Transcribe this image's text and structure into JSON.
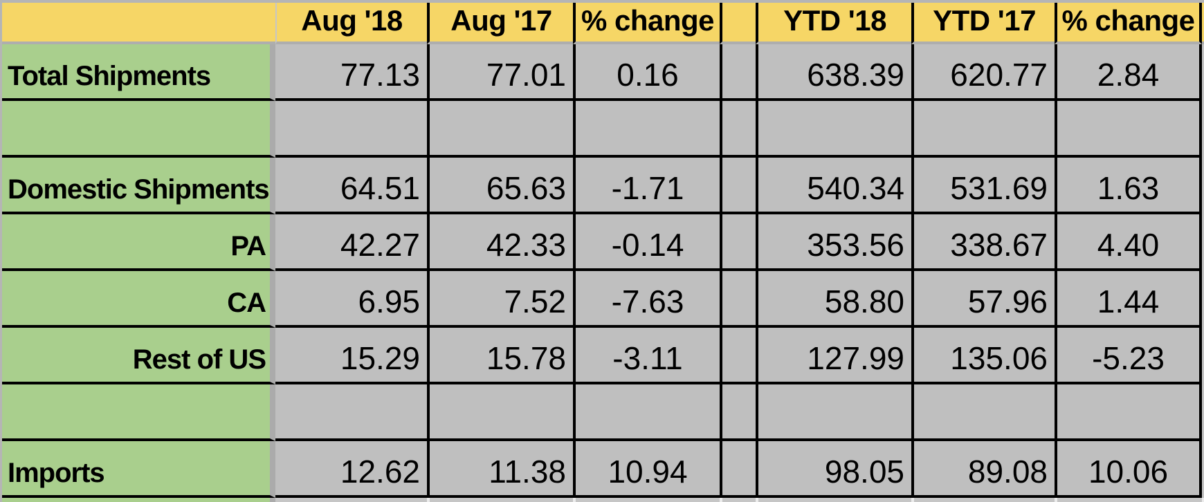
{
  "table": {
    "headers": [
      "",
      "Aug '18",
      "Aug '17",
      "% change",
      "",
      "YTD '18",
      "YTD '17",
      "% change"
    ],
    "rows": [
      {
        "label": "Total Shipments",
        "align": "left",
        "values": [
          "77.13",
          "77.01",
          "0.16",
          "638.39",
          "620.77",
          "2.84"
        ]
      },
      {
        "label": "",
        "align": "left",
        "values": [
          "",
          "",
          "",
          "",
          "",
          ""
        ]
      },
      {
        "label": "Domestic Shipments",
        "align": "left",
        "values": [
          "64.51",
          "65.63",
          "-1.71",
          "540.34",
          "531.69",
          "1.63"
        ]
      },
      {
        "label": "PA",
        "align": "right",
        "values": [
          "42.27",
          "42.33",
          "-0.14",
          "353.56",
          "338.67",
          "4.40"
        ]
      },
      {
        "label": "CA",
        "align": "right",
        "values": [
          "6.95",
          "7.52",
          "-7.63",
          "58.80",
          "57.96",
          "1.44"
        ]
      },
      {
        "label": "Rest of US",
        "align": "right",
        "values": [
          "15.29",
          "15.78",
          "-3.11",
          "127.99",
          "135.06",
          "-5.23"
        ]
      },
      {
        "label": "",
        "align": "left",
        "values": [
          "",
          "",
          "",
          "",
          "",
          ""
        ]
      },
      {
        "label": "Imports",
        "align": "left",
        "values": [
          "12.62",
          "11.38",
          "10.94",
          "98.05",
          "89.08",
          "10.06"
        ]
      }
    ],
    "colors": {
      "header_bg": "#f6d666",
      "label_bg": "#a9cf8d",
      "cell_bg": "#bfbfbf",
      "grid_black": "#000000",
      "gridline_gray": "#ababab"
    }
  }
}
